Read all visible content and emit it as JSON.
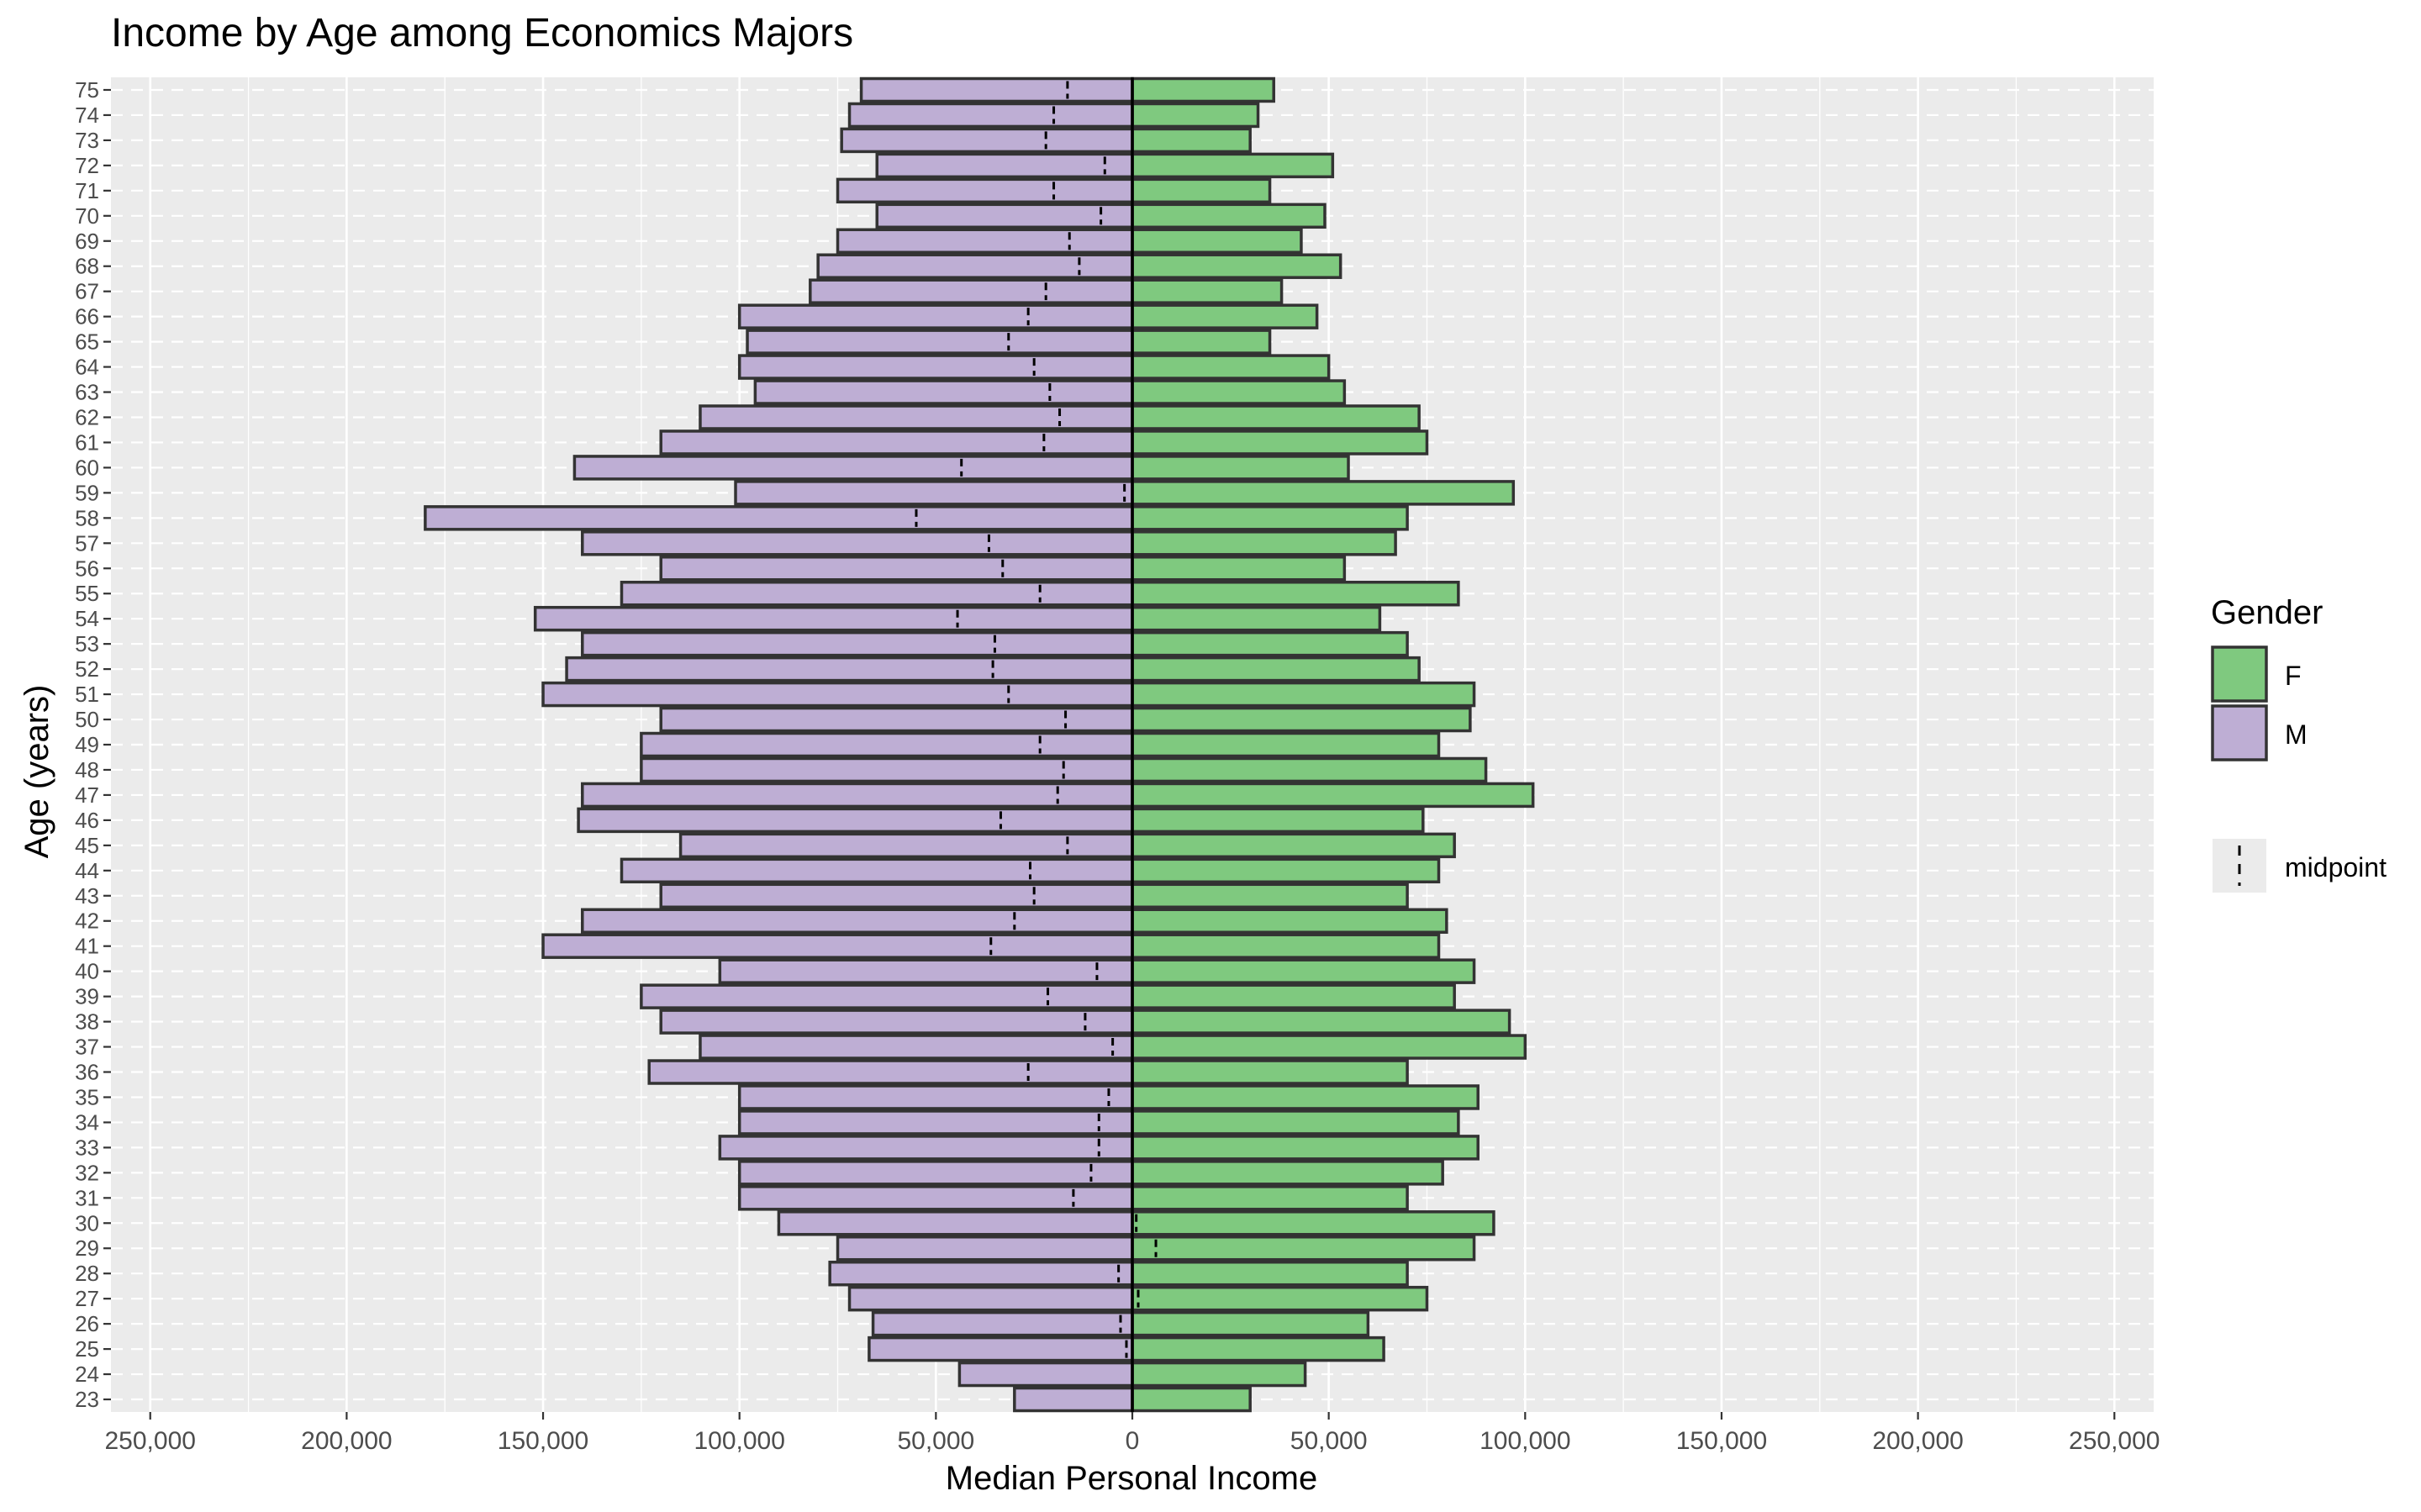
{
  "chart_data": {
    "type": "bar",
    "orientation": "horizontal",
    "title": "Income by Age among Economics Majors",
    "xlabel": "Median Personal Income",
    "ylabel": "Age (years)",
    "xlim": [
      -260000,
      260000
    ],
    "x_ticks": [
      -250000,
      -200000,
      -150000,
      -100000,
      -50000,
      0,
      50000,
      100000,
      150000,
      200000,
      250000
    ],
    "x_tick_labels": [
      "250,000",
      "200,000",
      "150,000",
      "100,000",
      "50,000",
      "0",
      "50,000",
      "100,000",
      "150,000",
      "200,000",
      "250,000"
    ],
    "categories": [
      23,
      24,
      25,
      26,
      27,
      28,
      29,
      30,
      31,
      32,
      33,
      34,
      35,
      36,
      37,
      38,
      39,
      40,
      41,
      42,
      43,
      44,
      45,
      46,
      47,
      48,
      49,
      50,
      51,
      52,
      53,
      54,
      55,
      56,
      57,
      58,
      59,
      60,
      61,
      62,
      63,
      64,
      65,
      66,
      67,
      68,
      69,
      70,
      71,
      72,
      73,
      74,
      75
    ],
    "series": [
      {
        "name": "F",
        "color": "#7fc97f",
        "side": "right",
        "values": [
          30000,
          44000,
          64000,
          60000,
          75000,
          70000,
          87000,
          92000,
          70000,
          79000,
          88000,
          83000,
          88000,
          70000,
          100000,
          96000,
          82000,
          87000,
          78000,
          80000,
          70000,
          78000,
          82000,
          74000,
          102000,
          90000,
          78000,
          86000,
          87000,
          73000,
          70000,
          63000,
          83000,
          54000,
          67000,
          70000,
          97000,
          55000,
          75000,
          73000,
          54000,
          50000,
          35000,
          47000,
          38000,
          53000,
          43000,
          49000,
          35000,
          51000,
          30000,
          32000,
          36000
        ]
      },
      {
        "name": "M",
        "color": "#beaed4",
        "side": "left",
        "values": [
          30000,
          44000,
          67000,
          66000,
          72000,
          77000,
          75000,
          90000,
          100000,
          100000,
          105000,
          100000,
          100000,
          123000,
          110000,
          120000,
          125000,
          105000,
          150000,
          140000,
          120000,
          130000,
          115000,
          141000,
          140000,
          125000,
          125000,
          120000,
          150000,
          144000,
          140000,
          152000,
          130000,
          120000,
          140000,
          180000,
          101000,
          142000,
          120000,
          110000,
          96000,
          100000,
          98000,
          100000,
          82000,
          80000,
          75000,
          65000,
          75000,
          65000,
          74000,
          72000,
          69000
        ]
      }
    ],
    "midpoint": [
      0,
      0,
      -1500,
      -3000,
      1500,
      -3500,
      6000,
      1000,
      -15000,
      -10500,
      -8500,
      -8500,
      -6000,
      -26500,
      -5000,
      -12000,
      -21500,
      -9000,
      -36000,
      -30000,
      -25000,
      -26000,
      -16500,
      -33500,
      -19000,
      -17500,
      -23500,
      -17000,
      -31500,
      -35500,
      -35000,
      -44500,
      -23500,
      -33000,
      -36500,
      -55000,
      -2000,
      -43500,
      -22500,
      -18500,
      -21000,
      -25000,
      -31500,
      -26500,
      -22000,
      -13500,
      -16000,
      -8000,
      -20000,
      -7000,
      -22000,
      -20000,
      -16500
    ],
    "legend": {
      "title": "Gender",
      "entries": [
        "F",
        "M"
      ],
      "midpoint_label": "midpoint",
      "placement": "right"
    },
    "grid": true,
    "colors": {
      "panel_background": "#ebebeb",
      "grid": "#ffffff",
      "bar_outline": "#333333",
      "text": "#000000",
      "tick_text": "#4d4d4d"
    }
  }
}
